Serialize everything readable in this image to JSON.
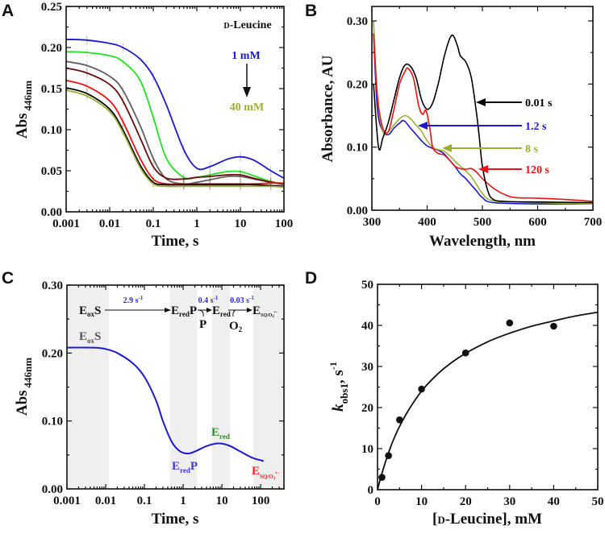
{
  "panel_letters": [
    "A",
    "B",
    "C",
    "D"
  ],
  "colors": {
    "axis": "#111111",
    "shade": "#efefef"
  },
  "chart_data": [
    {
      "type": "line",
      "panel": "A",
      "xlabel": "Time, s",
      "ylabel_main": "Abs",
      "ylabel_sub": "446nm",
      "xscale": "log",
      "xlim": [
        0.001,
        100
      ],
      "ylim": [
        0,
        0.25
      ],
      "x_tick_labels": [
        "0.001",
        "0.01",
        "0.1",
        "1",
        "10",
        "100"
      ],
      "y_tick_labels": [
        "0.00",
        "0.05",
        "0.10",
        "0.15",
        "0.20",
        "0.25"
      ],
      "annotation_prefix": "D",
      "annotation_rest": "-Leucine",
      "arrow_start_label": "1 mM",
      "arrow_end_label": "40 mM",
      "arrow_start_color": "#1a1ad0",
      "arrow_end_color": "#9ab030",
      "x": [
        0.001,
        0.003,
        0.01,
        0.02,
        0.05,
        0.1,
        0.2,
        0.5,
        1,
        2,
        5,
        10,
        20,
        50,
        100
      ],
      "series": [
        {
          "name": "1 mM",
          "color": "#1a1ad0",
          "values": [
            0.21,
            0.209,
            0.205,
            0.2,
            0.186,
            0.165,
            0.13,
            0.076,
            0.053,
            0.055,
            0.064,
            0.067,
            0.063,
            0.05,
            0.041
          ]
        },
        {
          "name": "series-2",
          "color": "#22e022",
          "values": [
            0.195,
            0.194,
            0.19,
            0.183,
            0.16,
            0.115,
            0.065,
            0.042,
            0.042,
            0.045,
            0.049,
            0.049,
            0.044,
            0.037,
            0.034
          ]
        },
        {
          "name": "series-3",
          "color": "#606060",
          "values": [
            0.183,
            0.178,
            0.165,
            0.148,
            0.105,
            0.065,
            0.04,
            0.034,
            0.036,
            0.039,
            0.043,
            0.043,
            0.04,
            0.036,
            0.033
          ]
        },
        {
          "name": "series-4",
          "color": "#6a0c0c",
          "values": [
            0.175,
            0.169,
            0.155,
            0.135,
            0.09,
            0.055,
            0.041,
            0.04,
            0.042,
            0.043,
            0.045,
            0.045,
            0.041,
            0.036,
            0.034
          ]
        },
        {
          "name": "series-5",
          "color": "#ee1111",
          "values": [
            0.16,
            0.153,
            0.135,
            0.11,
            0.065,
            0.04,
            0.034,
            0.034,
            0.034,
            0.034,
            0.034,
            0.034,
            0.034,
            0.035,
            0.035
          ]
        },
        {
          "name": "series-6",
          "color": "#000000",
          "values": [
            0.151,
            0.144,
            0.125,
            0.1,
            0.057,
            0.036,
            0.033,
            0.033,
            0.033,
            0.033,
            0.033,
            0.033,
            0.033,
            0.032,
            0.031
          ]
        },
        {
          "name": "40 mM",
          "color": "#9ab030",
          "values": [
            0.148,
            0.141,
            0.122,
            0.097,
            0.054,
            0.034,
            0.031,
            0.031,
            0.031,
            0.031,
            0.031,
            0.031,
            0.031,
            0.031,
            0.03
          ]
        }
      ]
    },
    {
      "type": "line",
      "panel": "B",
      "xlabel": "Wavelength, nm",
      "ylabel": "Absorbance, AU",
      "xlim": [
        300,
        700
      ],
      "ylim": [
        0,
        0.323
      ],
      "x_tick_labels": [
        "300",
        "400",
        "500",
        "600",
        "700"
      ],
      "y_tick_labels": [
        "0.00",
        "0.10",
        "0.20",
        "0.30"
      ],
      "series": [
        {
          "name": "0.01 s",
          "color": "#000000",
          "x": [
            303,
            312,
            320,
            330,
            340,
            350,
            360,
            370,
            380,
            390,
            400,
            410,
            420,
            430,
            440,
            447,
            455,
            460,
            470,
            480,
            490,
            495,
            500,
            510,
            520,
            540,
            600,
            700
          ],
          "values": [
            0.2,
            0.1,
            0.115,
            0.14,
            0.175,
            0.21,
            0.23,
            0.228,
            0.21,
            0.175,
            0.16,
            0.17,
            0.2,
            0.24,
            0.27,
            0.277,
            0.26,
            0.245,
            0.235,
            0.21,
            0.15,
            0.11,
            0.07,
            0.03,
            0.017,
            0.014,
            0.013,
            0.012
          ]
        },
        {
          "name": "1.2 s",
          "color": "#1a1ad0",
          "x": [
            303,
            310,
            320,
            330,
            340,
            350,
            358,
            370,
            380,
            390,
            400,
            410,
            420,
            430,
            440,
            450,
            460,
            470,
            480,
            490,
            500,
            520,
            600,
            700
          ],
          "values": [
            0.28,
            0.16,
            0.125,
            0.12,
            0.13,
            0.138,
            0.142,
            0.13,
            0.12,
            0.11,
            0.102,
            0.098,
            0.095,
            0.09,
            0.08,
            0.07,
            0.058,
            0.05,
            0.04,
            0.03,
            0.02,
            0.012,
            0.01,
            0.01
          ]
        },
        {
          "name": "8 s",
          "color": "#9ab030",
          "x": [
            303,
            310,
            320,
            330,
            340,
            350,
            360,
            370,
            380,
            390,
            400,
            410,
            420,
            430,
            440,
            450,
            460,
            470,
            480,
            490,
            500,
            520,
            600,
            700
          ],
          "values": [
            0.3,
            0.18,
            0.125,
            0.125,
            0.135,
            0.145,
            0.15,
            0.145,
            0.135,
            0.125,
            0.11,
            0.1,
            0.096,
            0.094,
            0.087,
            0.078,
            0.07,
            0.062,
            0.053,
            0.04,
            0.027,
            0.015,
            0.012,
            0.01
          ]
        },
        {
          "name": "120 s",
          "color": "#ee1111",
          "x": [
            303,
            310,
            320,
            330,
            340,
            350,
            360,
            365,
            375,
            385,
            392,
            398,
            405,
            410,
            420,
            430,
            440,
            450,
            460,
            470,
            480,
            490,
            500,
            520,
            540,
            560,
            600,
            650,
            700
          ],
          "values": [
            0.28,
            0.18,
            0.13,
            0.125,
            0.16,
            0.2,
            0.22,
            0.225,
            0.21,
            0.165,
            0.152,
            0.158,
            0.13,
            0.1,
            0.09,
            0.088,
            0.08,
            0.07,
            0.066,
            0.065,
            0.066,
            0.06,
            0.05,
            0.035,
            0.025,
            0.02,
            0.019,
            0.017,
            0.014
          ]
        }
      ]
    },
    {
      "type": "line",
      "panel": "C",
      "xlabel": "Time, s",
      "ylabel_main": "Abs",
      "ylabel_sub": "446nm",
      "xscale": "log",
      "xlim": [
        0.001,
        400
      ],
      "ylim": [
        0,
        0.3
      ],
      "x_tick_labels": [
        "0.001",
        "0.01",
        "0.1",
        "1",
        "10",
        "100"
      ],
      "y_tick_labels": [
        "0.00",
        "0.10",
        "0.20",
        "0.30"
      ],
      "shaded_ranges": [
        [
          0.001,
          0.012
        ],
        [
          0.45,
          2.3
        ],
        [
          5.5,
          16
        ],
        [
          65,
          400
        ]
      ],
      "x": [
        0.001,
        0.005,
        0.01,
        0.02,
        0.05,
        0.1,
        0.2,
        0.3,
        0.5,
        0.8,
        1.3,
        2,
        4,
        8,
        15,
        30,
        60,
        120
      ],
      "series": [
        {
          "name": "trace",
          "color": "#1a1ad0",
          "values": [
            0.208,
            0.208,
            0.206,
            0.2,
            0.185,
            0.165,
            0.13,
            0.1,
            0.07,
            0.056,
            0.052,
            0.055,
            0.063,
            0.067,
            0.064,
            0.055,
            0.046,
            0.041
          ]
        }
      ],
      "scheme": {
        "eox_s": {
          "E": "E",
          "sub": "ox",
          "rest": "S"
        },
        "ered_p": {
          "E": "E",
          "sub": "red",
          "rest": "P"
        },
        "ered": {
          "E": "E",
          "sub": "red"
        },
        "esq": {
          "E": "E",
          "sub": "SQ/O",
          "sub2": "2",
          "sup": "•−"
        },
        "released_p": "P",
        "o2": {
          "main": "O",
          "sub": "2"
        },
        "rates": [
          {
            "value": "2.9 s",
            "exp": "-1"
          },
          {
            "value": "0.4 s",
            "exp": "-1"
          },
          {
            "value": "0.03 s",
            "exp": "-1"
          }
        ]
      },
      "state_labels": {
        "eox_s": {
          "E": "E",
          "sub": "ox",
          "rest": "S",
          "color": "#555555"
        },
        "ered_p": {
          "E": "E",
          "sub": "red",
          "rest": "P",
          "color": "#3a3ad8"
        },
        "ered": {
          "E": "E",
          "sub": "red",
          "color": "#2e8b2e"
        },
        "esq": {
          "E": "E",
          "sub": "SQ/O",
          "sub2": "2",
          "sup": "•−",
          "color": "#ee2222"
        }
      }
    },
    {
      "type": "scatter",
      "panel": "D",
      "xlabel_pre": "[",
      "xlabel_prefix": "D",
      "xlabel_rest": "-Leucine], mM",
      "ylabel_k": "k",
      "ylabel_sub": "obs1",
      "ylabel_rest": ", s",
      "ylabel_exp": "-1",
      "xlim": [
        0,
        50
      ],
      "ylim": [
        0,
        50
      ],
      "x_tick_labels": [
        "0",
        "10",
        "20",
        "30",
        "40",
        "50"
      ],
      "y_tick_labels": [
        "0",
        "10",
        "20",
        "30",
        "40",
        "50"
      ],
      "points": {
        "x": [
          1,
          2.5,
          5,
          10,
          20,
          30,
          40
        ],
        "y": [
          3,
          8.3,
          17,
          24.5,
          33.3,
          40.6,
          39.8
        ]
      },
      "fit": {
        "x": [
          0,
          1,
          2,
          3,
          4,
          5,
          7,
          10,
          13,
          16,
          20,
          25,
          30,
          35,
          40,
          45,
          50
        ],
        "y": [
          0,
          4,
          7.4,
          10.5,
          13.1,
          15.4,
          19.3,
          24,
          27.5,
          30.3,
          33.2,
          36,
          38.1,
          39.8,
          41.1,
          42.3,
          43.2
        ]
      }
    }
  ]
}
